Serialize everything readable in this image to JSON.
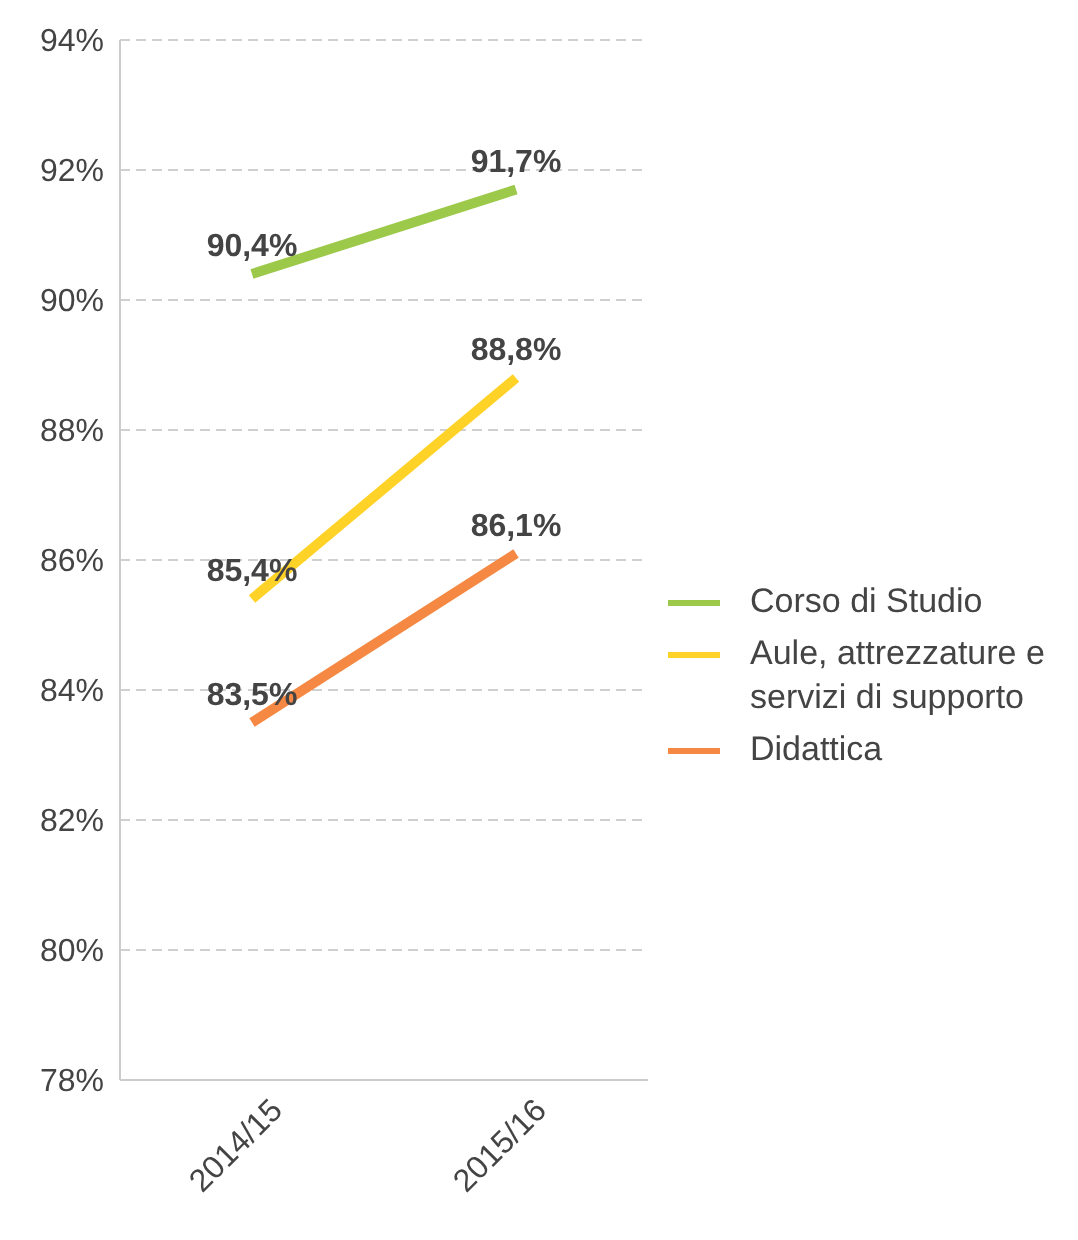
{
  "chart_data": {
    "type": "line",
    "categories": [
      "2014/15",
      "2015/16"
    ],
    "series": [
      {
        "name": "Corso di Studio",
        "color": "#9dc94a",
        "values": [
          90.4,
          91.7
        ],
        "value_labels": [
          "90,4%",
          "91,7%"
        ]
      },
      {
        "name": "Aule, attrezzature e servizi di supporto",
        "color": "#ffd228",
        "values": [
          85.4,
          88.8
        ],
        "value_labels": [
          "85,4%",
          "88,8%"
        ]
      },
      {
        "name": "Didattica",
        "color": "#f58842",
        "values": [
          83.5,
          86.1
        ],
        "value_labels": [
          "83,5%",
          "86,1%"
        ]
      }
    ],
    "ylim": [
      78,
      94
    ],
    "yticks": [
      {
        "value": 78,
        "label": "78%"
      },
      {
        "value": 80,
        "label": "80%"
      },
      {
        "value": 82,
        "label": "82%"
      },
      {
        "value": 84,
        "label": "84%"
      },
      {
        "value": 86,
        "label": "86%"
      },
      {
        "value": 88,
        "label": "88%"
      },
      {
        "value": 90,
        "label": "90%"
      },
      {
        "value": 92,
        "label": "92%"
      },
      {
        "value": 94,
        "label": "94%"
      }
    ],
    "grid": "y",
    "legend": "right",
    "marker": "none",
    "line_style": "solid"
  }
}
